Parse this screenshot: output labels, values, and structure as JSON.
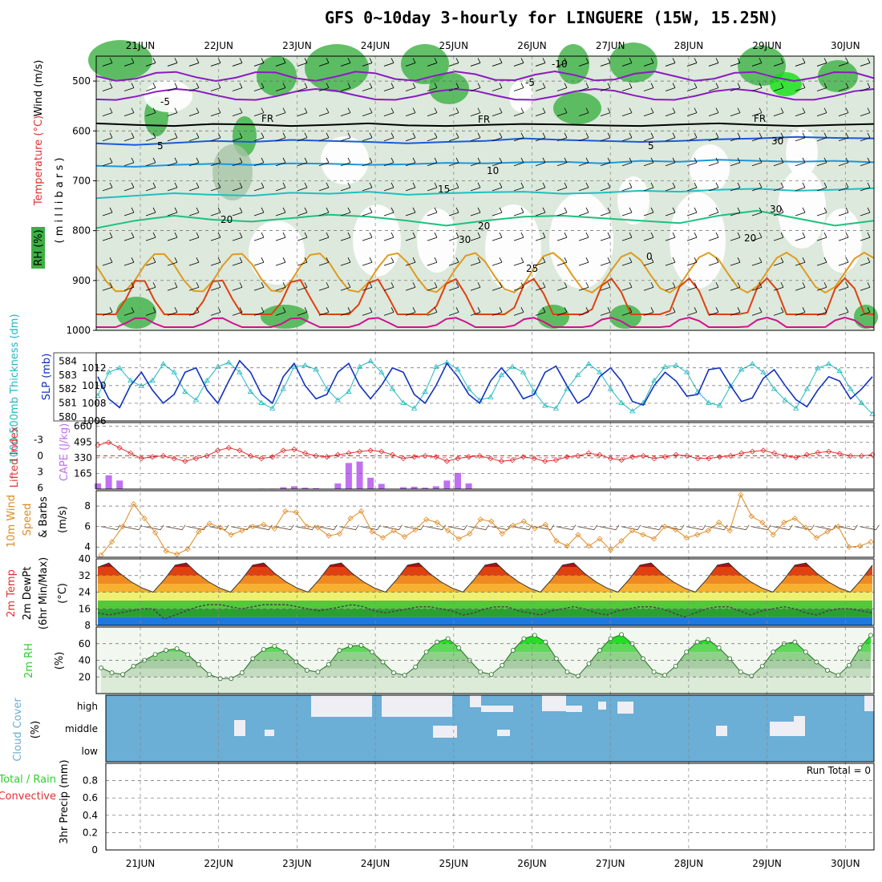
{
  "title": "GFS 0~10day 3-hourly for LINGUERE (15W, 15.25N)",
  "dates": [
    "21JUN",
    "22JUN",
    "23JUN",
    "24JUN",
    "25JUN",
    "26JUN",
    "27JUN",
    "28JUN",
    "29JUN",
    "30JUN"
  ],
  "colors": {
    "rh_green": "#3cb043",
    "rh_light": "#dce9dc",
    "temp_purple": "#8b1bc2",
    "temp_blue": "#1a5adc",
    "temp_lightblue": "#1e96dc",
    "temp_cyan": "#1fc0c0",
    "temp_green": "#1fc07f",
    "temp_orange": "#e09a20",
    "temp_red": "#e04010",
    "temp_magenta": "#d0108f",
    "thickness": "#20b8c0",
    "slp": "#1030c0",
    "lifted": "#e03030",
    "cape": "#c070f0",
    "wind": "#e08a20",
    "barbs": "#5a4030",
    "cloud": "#6baed6",
    "rh2m": "#2fd02f"
  },
  "panel_titles": {
    "upper_rh": "RH (%)",
    "upper_temp": "Temperature (°C)",
    "upper_wind": "Wind (m/s)",
    "upper_units": "( m i l l i b a r s )",
    "thickness": "1000-500mb Thickness (dm)",
    "slp": "SLP (mb)",
    "lifted": "Lifted Index",
    "cape": "CAPE (J/kg)",
    "wind10_a": "10m Wind",
    "wind10_b": "Speed",
    "wind10_c": "& Barbs",
    "wind10_unit": "(m/s)",
    "temp_a": "2m Temp",
    "temp_b": "2m DewPt",
    "temp_c": "(6hr Min/Max)",
    "temp_unit": "(°C)",
    "rh2m": "2m RH",
    "rh2m_unit": "(%)",
    "cloud": "Cloud Cover",
    "cloud_unit": "(%)",
    "precip_a": "Total / Rain",
    "precip_b": "Convective",
    "precip_c": "3hr Precip (mm)",
    "run_total": "Run Total = 0"
  },
  "contour_labels": {
    "m10": "-10",
    "m5a": "-5",
    "m5b": "-5",
    "fr1": "FR",
    "fr2": "FR",
    "fr3": "FR",
    "c5a": "5",
    "c5b": "5",
    "c10": "10",
    "c15": "15",
    "c20a": "20",
    "c20b": "20",
    "c20c": "20",
    "c25": "25",
    "c0": "0",
    "c30a": "30",
    "c30b": "30",
    "c30c": "30"
  },
  "chart_data": [
    {
      "type": "heatmap",
      "name": "upper-air cross section",
      "y_ticks": [
        500,
        600,
        700,
        800,
        900,
        1000
      ],
      "ylim": [
        1000,
        450
      ],
      "contour_levels_C": [
        -10,
        -5,
        0,
        5,
        10,
        15,
        20,
        25,
        30
      ],
      "series": [
        {
          "name": "FR",
          "values": [
            585,
            588,
            590,
            586,
            587,
            590,
            588,
            585,
            589,
            590,
            588,
            586,
            587,
            589,
            590,
            587,
            585,
            588,
            590,
            588,
            586
          ]
        },
        {
          "name": "5",
          "values": [
            625,
            628,
            624,
            620,
            622,
            618,
            620,
            622,
            625,
            622,
            620,
            615,
            618,
            620,
            622,
            620,
            617,
            615,
            612,
            614,
            615
          ]
        },
        {
          "name": "10",
          "values": [
            670,
            672,
            668,
            666,
            668,
            665,
            666,
            668,
            667,
            664,
            665,
            663,
            662,
            665,
            660,
            662,
            658,
            660,
            662,
            660,
            663
          ]
        },
        {
          "name": "15",
          "values": [
            735,
            730,
            725,
            728,
            730,
            724,
            726,
            722,
            728,
            725,
            723,
            722,
            726,
            724,
            720,
            722,
            718,
            716,
            720,
            718,
            715
          ]
        },
        {
          "name": "20",
          "values": [
            795,
            780,
            770,
            778,
            782,
            775,
            768,
            772,
            780,
            790,
            780,
            772,
            770,
            775,
            780,
            785,
            770,
            760,
            775,
            790,
            780
          ]
        }
      ]
    },
    {
      "type": "line",
      "name": "thickness and SLP",
      "y_ticks_left": [
        580,
        581,
        582,
        583,
        584
      ],
      "y_ticks_right": [
        1006,
        1008,
        1010,
        1012
      ],
      "series": [
        {
          "name": "1000-500mb Thickness (dm)",
          "values": [
            581.5,
            583.2,
            583.5,
            582.6,
            582.2,
            582.6,
            583.8,
            583.2,
            581.8,
            581.2,
            582.6,
            583.6,
            583.9,
            583.2,
            581.8,
            581.0,
            580.6,
            582.0,
            583.6,
            583.7,
            583.4,
            582.0,
            581.2,
            581.8,
            583.6,
            584.0,
            583.2,
            582.0,
            581.0,
            580.6,
            581.8,
            583.6,
            583.9,
            583.4,
            582.0,
            581.2,
            581.4,
            583.0,
            583.6,
            583.2,
            581.8,
            580.8,
            580.6,
            582.0,
            583.0,
            583.8,
            583.2,
            582.0,
            581.0,
            580.4,
            581.0,
            582.6,
            583.6,
            583.7,
            583.2,
            581.8,
            581.0,
            580.8,
            582.2,
            583.4,
            583.8,
            583.2,
            582.0,
            581.2,
            580.6,
            582.0,
            583.5,
            583.8,
            583.3,
            582.0,
            581.0,
            580.2
          ]
        },
        {
          "name": "SLP (mb)",
          "values": [
            1011.0,
            1008.5,
            1007.5,
            1010.0,
            1011.5,
            1009.5,
            1008.0,
            1009.0,
            1011.5,
            1012.0,
            1009.5,
            1008.0,
            1010.5,
            1012.8,
            1011.5,
            1009.0,
            1008.0,
            1011.0,
            1012.5,
            1010.0,
            1008.5,
            1009.0,
            1011.5,
            1012.5,
            1010.0,
            1008.5,
            1010.0,
            1012.0,
            1011.5,
            1009.0,
            1008.0,
            1010.0,
            1012.5,
            1011.0,
            1009.0,
            1008.0,
            1010.5,
            1012.0,
            1010.5,
            1008.5,
            1009.0,
            1011.5,
            1012.2,
            1010.0,
            1008.0,
            1008.8,
            1011.0,
            1012.0,
            1010.5,
            1008.2,
            1007.8,
            1010.0,
            1011.5,
            1010.5,
            1008.8,
            1009.0,
            1011.8,
            1012.0,
            1010.0,
            1008.2,
            1008.6,
            1010.8,
            1011.8,
            1010.0,
            1008.4,
            1007.6,
            1009.5,
            1011.0,
            1010.5,
            1008.5,
            1009.6,
            1011.0
          ]
        }
      ]
    },
    {
      "type": "bar",
      "name": "lifted index and CAPE",
      "y_ticks_left": [
        -3,
        0,
        3,
        6
      ],
      "y_ticks_right": [
        165,
        330,
        495,
        660
      ],
      "series": [
        {
          "name": "Lifted Index",
          "values": [
            -2.0,
            -2.5,
            -1.5,
            -0.5,
            0.5,
            0.2,
            0.0,
            0.5,
            1.0,
            0.5,
            0.0,
            -1.0,
            -1.5,
            -1.0,
            0.0,
            0.5,
            0.2,
            -1.0,
            -1.2,
            -0.5,
            0.0,
            0.2,
            -0.2,
            -0.5,
            -0.8,
            -1.0,
            -0.8,
            -0.2,
            0.5,
            0.2,
            0.0,
            0.2,
            1.0,
            0.5,
            0.2,
            0.0,
            0.5,
            1.0,
            0.8,
            0.2,
            0.5,
            1.0,
            0.8,
            0.2,
            0.0,
            -0.5,
            -0.2,
            0.5,
            0.8,
            0.2,
            0.0,
            0.5,
            0.2,
            -0.2,
            0.0,
            0.5,
            0.5,
            0.2,
            0.0,
            -0.5,
            -0.8,
            -1.0,
            -0.5,
            0.0,
            0.3,
            -0.2,
            -0.6,
            -0.8,
            -0.4,
            0.0,
            0.0,
            -0.2
          ]
        },
        {
          "name": "CAPE (J/kg)",
          "values": [
            60,
            145,
            90,
            0,
            0,
            0,
            0,
            0,
            0,
            0,
            0,
            0,
            0,
            0,
            0,
            5,
            5,
            20,
            30,
            15,
            10,
            0,
            60,
            275,
            290,
            120,
            55,
            0,
            20,
            25,
            15,
            30,
            90,
            170,
            60,
            0,
            0,
            0,
            0,
            0,
            0,
            0,
            0,
            0,
            0,
            0,
            0,
            0,
            0,
            0,
            0,
            0,
            0,
            0,
            0,
            0,
            0,
            0,
            0,
            0,
            0,
            0,
            0,
            0,
            0,
            0,
            0,
            0,
            0,
            0,
            0,
            0
          ]
        }
      ]
    },
    {
      "type": "line",
      "name": "10m wind speed",
      "y_ticks": [
        4,
        6,
        8
      ],
      "ylim": [
        3,
        9.5
      ],
      "values": [
        3.2,
        4.5,
        6.0,
        8.2,
        6.8,
        5.4,
        3.6,
        3.3,
        3.8,
        5.5,
        6.3,
        5.9,
        5.2,
        5.6,
        6.0,
        6.2,
        5.8,
        7.5,
        7.4,
        6.0,
        5.9,
        5.1,
        5.3,
        6.8,
        7.5,
        5.5,
        4.9,
        5.6,
        5.0,
        5.7,
        6.7,
        6.4,
        5.6,
        4.8,
        5.3,
        6.7,
        6.5,
        5.3,
        6.1,
        6.5,
        5.8,
        6.2,
        4.6,
        4.1,
        5.2,
        4.1,
        4.8,
        3.7,
        4.6,
        5.6,
        5.2,
        4.8,
        6.0,
        5.7,
        4.9,
        5.2,
        5.6,
        6.4,
        5.6,
        9.1,
        7.0,
        6.4,
        5.2,
        6.4,
        6.8,
        5.9,
        4.9,
        5.5,
        6.0,
        4.0,
        4.1,
        4.5
      ]
    },
    {
      "type": "area",
      "name": "2m temperature and dew point",
      "y_ticks": [
        8,
        16,
        24,
        32,
        40
      ],
      "series": [
        {
          "name": "2m Temp",
          "values": [
            36,
            38,
            33,
            29,
            26,
            24,
            30,
            37,
            38,
            33,
            29,
            26,
            24,
            30,
            37,
            38,
            33,
            29,
            26,
            24,
            30,
            37,
            38,
            33,
            29,
            26,
            24,
            30,
            37,
            38,
            33,
            29,
            26,
            24,
            30,
            37,
            38,
            33,
            29,
            26,
            24,
            30,
            37,
            38,
            33,
            29,
            26,
            24,
            30,
            37,
            38,
            33,
            29,
            26,
            24,
            30,
            37,
            38,
            33,
            29,
            26,
            24,
            30,
            37,
            38,
            33,
            29,
            26,
            24,
            30,
            37
          ]
        },
        {
          "name": "2m DewPt",
          "values": [
            14,
            13,
            14,
            15,
            16,
            16,
            11,
            13,
            15,
            17,
            18,
            18,
            17,
            16,
            17,
            18,
            18,
            18,
            17,
            16,
            15,
            16,
            17,
            18,
            17,
            15,
            14,
            15,
            16,
            17,
            17,
            16,
            15,
            13,
            14,
            16,
            17,
            17,
            15,
            14,
            13,
            15,
            16,
            17,
            16,
            14,
            13,
            15,
            16,
            17,
            17,
            16,
            14,
            12,
            14,
            16,
            17,
            17,
            15,
            13,
            15,
            16,
            17,
            16,
            14,
            13,
            15,
            16,
            16,
            15,
            14
          ]
        }
      ]
    },
    {
      "type": "area",
      "name": "2m relative humidity",
      "y_ticks": [
        20,
        40,
        60
      ],
      "values": [
        31,
        25,
        23,
        33,
        40,
        47,
        52,
        54,
        47,
        35,
        23,
        18,
        18,
        25,
        42,
        53,
        57,
        50,
        38,
        28,
        26,
        35,
        52,
        57,
        58,
        50,
        38,
        25,
        22,
        32,
        50,
        62,
        66,
        55,
        40,
        26,
        23,
        34,
        52,
        66,
        70,
        62,
        42,
        26,
        21,
        36,
        52,
        66,
        71,
        60,
        42,
        26,
        22,
        33,
        50,
        62,
        65,
        55,
        42,
        26,
        21,
        33,
        50,
        60,
        62,
        50,
        38,
        28,
        22,
        34,
        55,
        70
      ]
    },
    {
      "type": "heatmap",
      "name": "cloud cover",
      "categories": [
        "high",
        "middle",
        "low"
      ]
    },
    {
      "type": "bar",
      "name": "3hr precipitation",
      "y_ticks": [
        0,
        0.2,
        0.4,
        0.6,
        0.8
      ],
      "ylim": [
        0,
        1.0
      ],
      "values": []
    }
  ]
}
